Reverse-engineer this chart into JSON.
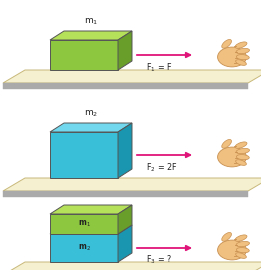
{
  "bg_color": "#ffffff",
  "platform_top_color": "#f5f0d0",
  "platform_edge_color": "#c8b87a",
  "platform_gray": "#aaaaaa",
  "box1_face_color": "#8dc63f",
  "box1_top_color": "#b5e05a",
  "box1_side_color": "#6a9e2a",
  "box2_face_color": "#39c0d8",
  "box2_top_color": "#72d8ee",
  "box2_side_color": "#1a96b0",
  "arrow_color": "#e0157a",
  "label_color": "#222222",
  "skin_color": "#f0c080",
  "skin_dark": "#c89050"
}
